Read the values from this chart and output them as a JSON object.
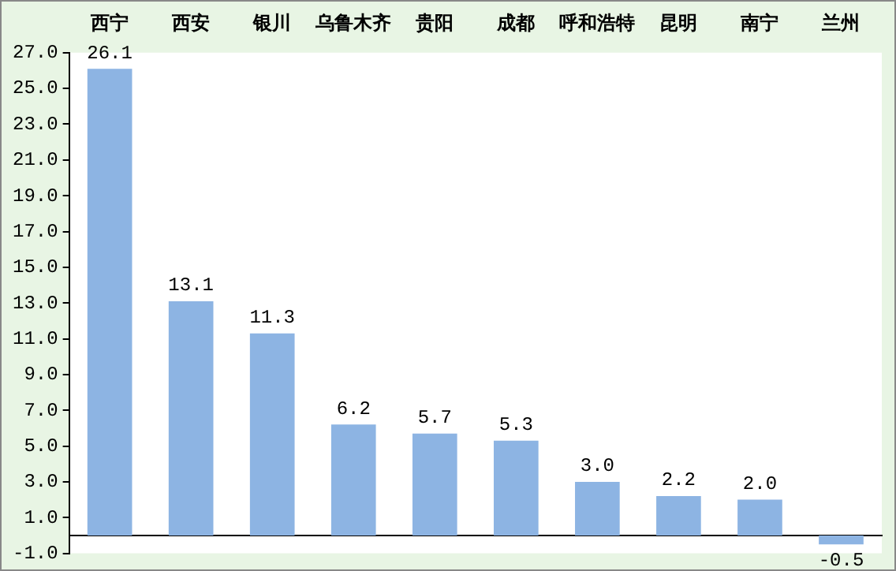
{
  "chart_data": {
    "type": "bar",
    "categories": [
      "西宁",
      "西安",
      "银川",
      "乌鲁木齐",
      "贵阳",
      "成都",
      "呼和浩特",
      "昆明",
      "南宁",
      "兰州"
    ],
    "values": [
      26.1,
      13.1,
      11.3,
      6.2,
      5.7,
      5.3,
      3.0,
      2.2,
      2.0,
      -0.5
    ],
    "value_labels": [
      "26.1",
      "13.1",
      "11.3",
      "6.2",
      "5.7",
      "5.3",
      "3.0",
      "2.2",
      "2.0",
      "-0.5"
    ],
    "color": "#8db4e3",
    "ylim": [
      -1,
      27
    ],
    "yticks": [
      {
        "value": -1,
        "label": "-1.0"
      },
      {
        "value": 1,
        "label": "1.0"
      },
      {
        "value": 3,
        "label": "3.0"
      },
      {
        "value": 5,
        "label": "5.0"
      },
      {
        "value": 7,
        "label": "7.0"
      },
      {
        "value": 9,
        "label": "9.0"
      },
      {
        "value": 11,
        "label": "11.0"
      },
      {
        "value": 13,
        "label": "13.0"
      },
      {
        "value": 15,
        "label": "15.0"
      },
      {
        "value": 17,
        "label": "17.0"
      },
      {
        "value": 19,
        "label": "19.0"
      },
      {
        "value": 21,
        "label": "21.0"
      },
      {
        "value": 23,
        "label": "23.0"
      },
      {
        "value": 25,
        "label": "25.0"
      },
      {
        "value": 27,
        "label": "27.0"
      }
    ],
    "grid": false,
    "legend": false
  }
}
